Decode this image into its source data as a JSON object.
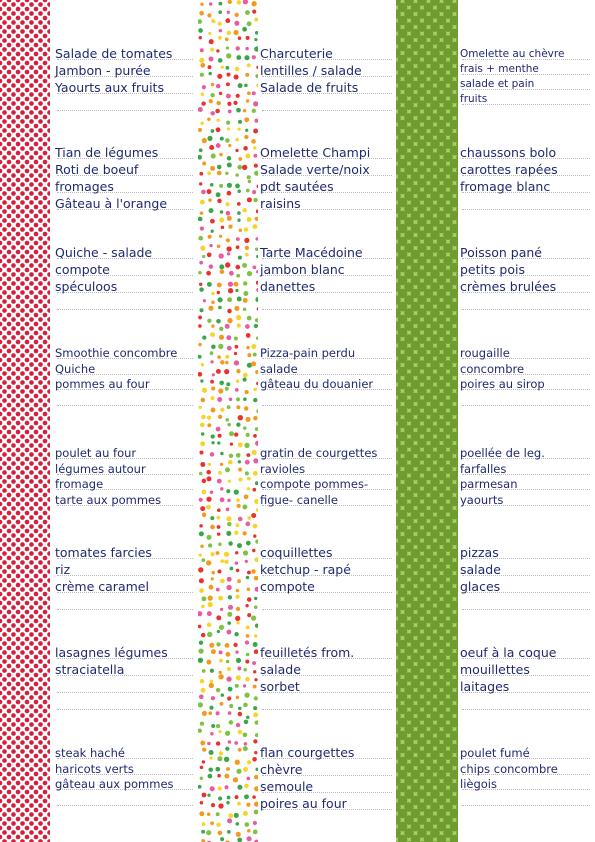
{
  "columns": [
    {
      "name": "column-1",
      "cells": [
        [
          "Salade de tomates",
          "Jambon - purée",
          "Yaourts aux fruits"
        ],
        [
          "Tian de légumes",
          "Roti de boeuf",
          "fromages",
          "Gâteau à l'orange"
        ],
        [
          "Quiche - salade",
          "compote",
          "spéculoos"
        ],
        [
          "Smoothie concombre",
          "Quiche",
          "pommes au four"
        ],
        [
          "poulet au four",
          "légumes autour",
          "fromage",
          "tarte aux pommes"
        ],
        [
          "tomates farcies",
          "riz",
          "crème caramel"
        ],
        [
          "lasagnes légumes",
          "straciatella"
        ],
        [
          "steak haché",
          "haricots verts",
          "gâteau aux pommes"
        ]
      ]
    },
    {
      "name": "column-2",
      "cells": [
        [
          "Charcuterie",
          "lentilles / salade",
          "Salade de fruits"
        ],
        [
          "Omelette Champi",
          "Salade verte/noix",
          "pdt sautées",
          "raisins"
        ],
        [
          "Tarte Macédoine",
          "jambon blanc",
          "danettes"
        ],
        [
          "Pizza-pain perdu",
          "salade",
          "gâteau du douanier"
        ],
        [
          "gratin de courgettes",
          "ravioles",
          "compote pommes-",
          "figue- canelle"
        ],
        [
          "coquillettes",
          "ketchup - rapé",
          "compote"
        ],
        [
          "feuilletés from.",
          "salade",
          "sorbet"
        ],
        [
          "flan courgettes",
          "chèvre",
          "semoule",
          "poires au four"
        ]
      ]
    },
    {
      "name": "column-3",
      "cells": [
        [
          "Omelette au chèvre",
          "frais + menthe",
          "salade et pain",
          "fruits"
        ],
        [
          "chaussons bolo",
          "carottes rapées",
          "fromage blanc"
        ],
        [
          "Poisson pané",
          "petits pois",
          "crèmes brulées"
        ],
        [
          "rougaille",
          "concombre",
          "poires au sirop"
        ],
        [
          "poellée de leg.",
          "farfalles",
          "parmesan",
          "yaourts"
        ],
        [
          "pizzas",
          "salade",
          "glaces"
        ],
        [
          "oeuf à la coque",
          "mouillettes",
          "laitages"
        ],
        [
          "poulet fumé",
          "chips concombre",
          "liègois"
        ]
      ]
    }
  ],
  "colors": {
    "ink": "#1f2a6e",
    "polka_red": "#d81e3a",
    "apple_green": "#6f9c2e",
    "confetti": [
      "#e8322b",
      "#f39a1e",
      "#f6d52a",
      "#7dc242",
      "#3aa64a",
      "#e95aa0"
    ]
  },
  "strips": {
    "left": "red-polka-dots",
    "middle": "confetti-dots",
    "right": "green-apples"
  }
}
